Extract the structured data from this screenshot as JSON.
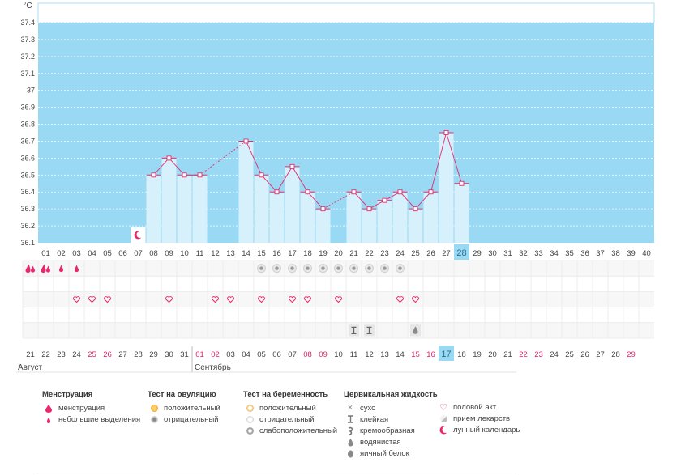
{
  "chart_data": {
    "type": "bar",
    "ylabel": "°C",
    "ylim": [
      36.1,
      37.45
    ],
    "yticks": [
      "36.1",
      "36.2",
      "36.3",
      "36.4",
      "36.5",
      "36.6",
      "36.7",
      "36.8",
      "36.9",
      "37",
      "37.1",
      "37.2",
      "37.3",
      "37.4"
    ],
    "cycle_days": [
      "01",
      "02",
      "03",
      "04",
      "05",
      "06",
      "07",
      "08",
      "09",
      "10",
      "11",
      "12",
      "13",
      "14",
      "15",
      "16",
      "17",
      "18",
      "19",
      "20",
      "21",
      "22",
      "23",
      "24",
      "25",
      "26",
      "27",
      "28",
      "29",
      "30",
      "31",
      "32",
      "33",
      "34",
      "35",
      "36",
      "37",
      "38",
      "39",
      "40"
    ],
    "current_cycle_day": "28",
    "temperatures": [
      null,
      null,
      null,
      null,
      null,
      null,
      null,
      36.5,
      36.6,
      36.5,
      36.5,
      null,
      null,
      36.7,
      36.5,
      36.4,
      36.55,
      36.4,
      36.3,
      null,
      36.4,
      36.3,
      36.35,
      36.4,
      36.3,
      36.4,
      36.75,
      36.45,
      null,
      null,
      null,
      null,
      null,
      null,
      null,
      null,
      null,
      null,
      null,
      null
    ],
    "dashed_segments": [
      [
        11,
        14
      ],
      [
        19,
        21
      ]
    ],
    "calendar_dates": [
      "21",
      "22",
      "23",
      "24",
      "25",
      "26",
      "27",
      "28",
      "29",
      "30",
      "31",
      "01",
      "02",
      "03",
      "04",
      "05",
      "06",
      "07",
      "08",
      "09",
      "10",
      "11",
      "12",
      "13",
      "14",
      "15",
      "16",
      "17",
      "18",
      "19",
      "20",
      "21",
      "22",
      "23",
      "24",
      "25",
      "26",
      "27",
      "28",
      "29"
    ],
    "weekend_dates": [
      4,
      5,
      11,
      12,
      18,
      19,
      25,
      26,
      32,
      33,
      39
    ],
    "today_index": 27,
    "months": [
      {
        "label": "Август",
        "start": 0
      },
      {
        "label": "Сентябрь",
        "start": 11
      }
    ],
    "moon_day_index": 6,
    "menstruation": [
      "menstruation",
      "menstruation",
      "light",
      "light",
      null,
      null,
      null,
      null,
      null,
      null,
      null,
      null,
      null,
      null,
      null,
      null,
      null,
      null,
      null,
      null,
      null,
      null,
      null,
      null,
      null,
      null,
      null,
      null,
      null,
      null,
      null,
      null,
      null,
      null,
      null,
      null,
      null,
      null,
      null,
      null
    ],
    "ovulation_negative": [
      15,
      16,
      17,
      18,
      19,
      20,
      21,
      22,
      23,
      24
    ],
    "intercourse": [
      3,
      4,
      5,
      9,
      12,
      13,
      15,
      17,
      18,
      20,
      24,
      25
    ],
    "fluid_sticky": [
      21,
      22
    ],
    "fluid_watery": [
      25
    ]
  },
  "colors": {
    "plot_bg": "#99d9f4",
    "bar_fill": "#d6f0fc",
    "line": "#e8296e",
    "today_bg": "#99d9f4",
    "weekend_text": "#e0226a"
  },
  "legend": {
    "menstruation": {
      "title": "Менструация",
      "items": [
        "менструация",
        "небольшие выделения"
      ]
    },
    "ovulation": {
      "title": "Тест на овуляцию",
      "items": [
        "положительный",
        "отрицательный"
      ]
    },
    "pregnancy": {
      "title": "Тест на беременность",
      "items": [
        "положительный",
        "отрицательный",
        "слабоположительный"
      ]
    },
    "fluid": {
      "title": "Цервикальная жидкость",
      "items": [
        "сухо",
        "клейкая",
        "кремообразная",
        "водянистая",
        "яичный белок"
      ]
    },
    "other": {
      "items": [
        "половой акт",
        "прием лекарств",
        "лунный календарь"
      ]
    }
  }
}
